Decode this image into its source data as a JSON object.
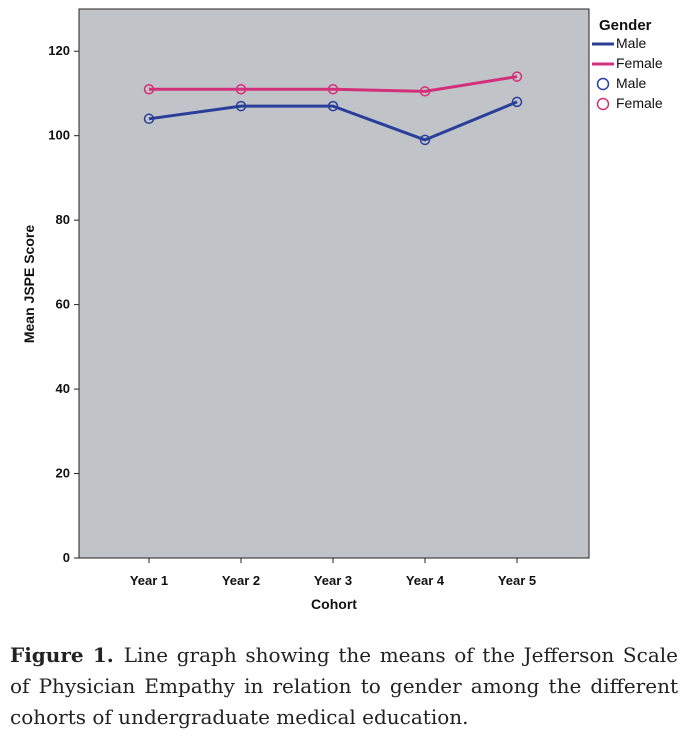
{
  "chart_data": {
    "type": "line",
    "xlabel": "Cohort",
    "ylabel": "Mean JSPE Score",
    "categories": [
      "Year 1",
      "Year 2",
      "Year 3",
      "Year 4",
      "Year 5"
    ],
    "ylim": [
      0,
      130
    ],
    "yticks": [
      0,
      20,
      40,
      60,
      80,
      100,
      120
    ],
    "grid": false,
    "legend_position": "right",
    "legend_title": "Gender",
    "legend_entries": [
      {
        "label": "Male",
        "kind": "line",
        "series": 0
      },
      {
        "label": "Female",
        "kind": "line",
        "series": 1
      },
      {
        "label": "Male",
        "kind": "marker",
        "series": 0
      },
      {
        "label": "Female",
        "kind": "marker",
        "series": 1
      }
    ],
    "plot_background": "#c0c4c8",
    "series": [
      {
        "name": "Male",
        "color": "#2a3f9a",
        "values": [
          104,
          107,
          107,
          99,
          108
        ]
      },
      {
        "name": "Female",
        "color": "#d4307a",
        "values": [
          111,
          111,
          111,
          110.5,
          114
        ]
      }
    ]
  },
  "caption": {
    "label": "Figure 1.",
    "text": "Line graph showing the means of the Jefferson Scale of Physician Empathy in relation to gender among the different cohorts of undergraduate medical education."
  }
}
